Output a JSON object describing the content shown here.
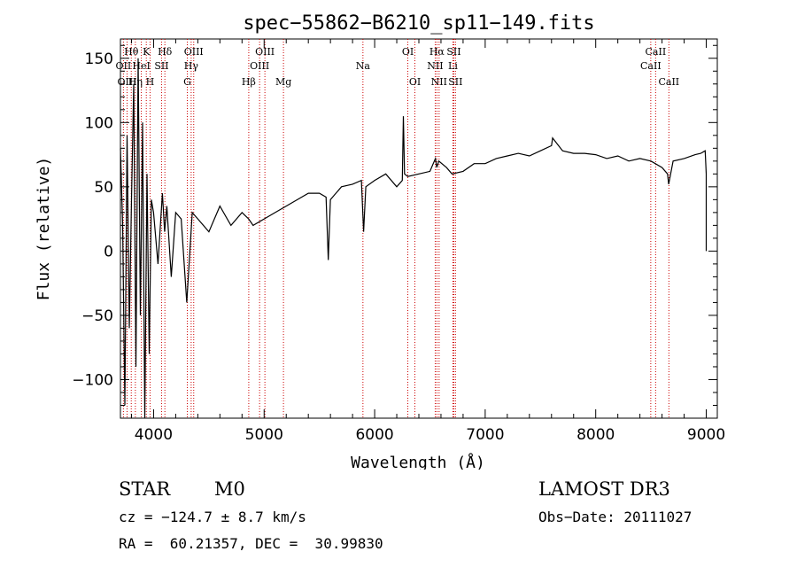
{
  "chart_data": {
    "type": "line",
    "title": "spec−55862−B6210_sp11−149.fits",
    "xlabel": "Wavelength (Å)",
    "ylabel": "Flux (relative)",
    "xlim": [
      3700,
      9100
    ],
    "ylim": [
      -130,
      165
    ],
    "xticks": [
      4000,
      5000,
      6000,
      7000,
      8000,
      9000
    ],
    "yticks": [
      -100,
      -50,
      0,
      50,
      100,
      150
    ],
    "ytick_labels": [
      "−100",
      "−50",
      "0",
      "50",
      "100",
      "150"
    ],
    "grid": false,
    "line_color": "#000000",
    "marker_color": "#cc0000",
    "spectrum": {
      "name": "flux",
      "x": [
        3700,
        3720,
        3740,
        3760,
        3780,
        3800,
        3820,
        3840,
        3860,
        3880,
        3900,
        3920,
        3940,
        3960,
        3980,
        4000,
        4040,
        4080,
        4100,
        4120,
        4160,
        4200,
        4250,
        4300,
        4350,
        4400,
        4500,
        4600,
        4700,
        4800,
        4860,
        4900,
        5000,
        5100,
        5200,
        5300,
        5400,
        5500,
        5560,
        5580,
        5600,
        5700,
        5800,
        5880,
        5900,
        5920,
        6000,
        6100,
        6200,
        6250,
        6260,
        6270,
        6300,
        6400,
        6500,
        6550,
        6562,
        6580,
        6650,
        6700,
        6800,
        6900,
        7000,
        7100,
        7200,
        7300,
        7400,
        7500,
        7600,
        7610,
        7700,
        7800,
        7900,
        8000,
        8100,
        8200,
        8300,
        8400,
        8500,
        8600,
        8650,
        8660,
        8700,
        8800,
        8900,
        8950,
        8990,
        9000,
        9000
      ],
      "y": [
        80,
        20,
        -120,
        90,
        -60,
        40,
        130,
        -90,
        150,
        -50,
        100,
        -130,
        60,
        -80,
        40,
        30,
        -10,
        45,
        15,
        35,
        -20,
        30,
        25,
        -40,
        30,
        25,
        15,
        35,
        20,
        30,
        25,
        20,
        25,
        30,
        35,
        40,
        45,
        45,
        42,
        -7,
        40,
        50,
        52,
        55,
        15,
        50,
        55,
        60,
        50,
        55,
        105,
        60,
        58,
        60,
        62,
        72,
        65,
        70,
        65,
        60,
        62,
        68,
        68,
        72,
        74,
        76,
        74,
        78,
        82,
        88,
        78,
        76,
        76,
        75,
        72,
        74,
        70,
        72,
        70,
        65,
        60,
        52,
        70,
        72,
        75,
        76,
        78,
        60,
        0
      ]
    },
    "lines": [
      {
        "name": "Hθ",
        "x": 3798,
        "row": 1
      },
      {
        "name": "OII",
        "x": 3727,
        "row": 2
      },
      {
        "name": "OIII",
        "x": 3760,
        "row": 3
      },
      {
        "name": "Hη",
        "x": 3835,
        "row": 3
      },
      {
        "name": "HeI",
        "x": 3889,
        "row": 2
      },
      {
        "name": "K",
        "x": 3934,
        "row": 1
      },
      {
        "name": "H",
        "x": 3968,
        "row": 3
      },
      {
        "name": "SII",
        "x": 4072,
        "row": 2
      },
      {
        "name": "Hδ",
        "x": 4102,
        "row": 1
      },
      {
        "name": "G",
        "x": 4305,
        "row": 3
      },
      {
        "name": "Hγ",
        "x": 4340,
        "row": 2
      },
      {
        "name": "OIII",
        "x": 4363,
        "row": 1
      },
      {
        "name": "Hβ",
        "x": 4861,
        "row": 3
      },
      {
        "name": "OIII",
        "x": 4959,
        "row": 2
      },
      {
        "name": "OIII",
        "x": 5007,
        "row": 1
      },
      {
        "name": "Mg",
        "x": 5175,
        "row": 3
      },
      {
        "name": "Na",
        "x": 5894,
        "row": 2
      },
      {
        "name": "OI",
        "x": 6300,
        "row": 1
      },
      {
        "name": "OI",
        "x": 6364,
        "row": 3
      },
      {
        "name": "NII",
        "x": 6548,
        "row": 2
      },
      {
        "name": "Hα",
        "x": 6563,
        "row": 1
      },
      {
        "name": "NII",
        "x": 6583,
        "row": 3
      },
      {
        "name": "Li",
        "x": 6708,
        "row": 2
      },
      {
        "name": "SII",
        "x": 6716,
        "row": 1
      },
      {
        "name": "SII",
        "x": 6731,
        "row": 3
      },
      {
        "name": "CaII",
        "x": 8498,
        "row": 2
      },
      {
        "name": "CaII",
        "x": 8542,
        "row": 1
      },
      {
        "name": "CaII",
        "x": 8662,
        "row": 3
      }
    ]
  },
  "info": {
    "object_class": "STAR",
    "subclass": "M0",
    "redshift": "cz = −124.7 ± 8.7 km/s",
    "coords": "RA =  60.21357, DEC =  30.99830",
    "survey": "LAMOST DR3",
    "obs_date": "Obs−Date: 20111027"
  }
}
